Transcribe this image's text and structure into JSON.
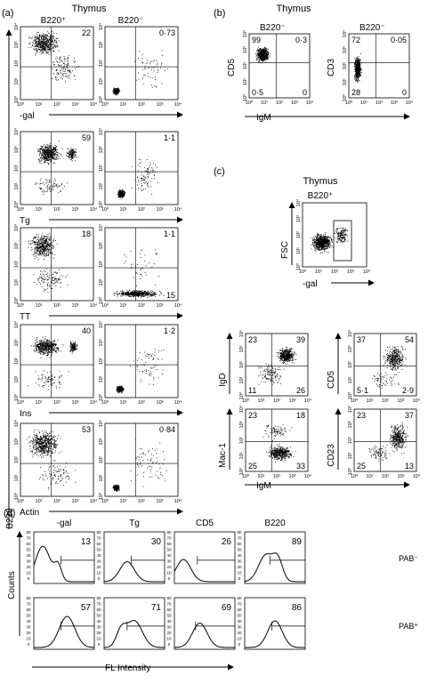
{
  "panel_a": {
    "panel_label": "(a)",
    "title": "Thymus",
    "column_headers": [
      "B220⁺",
      "B220⁻"
    ],
    "y_axis_label": "B220",
    "rows": [
      {
        "x_label": "-gal",
        "pos_value": "22",
        "neg_value": "0·73"
      },
      {
        "x_label": "Tg",
        "pos_value": "59",
        "neg_value": "1·1"
      },
      {
        "x_label": "TT",
        "pos_value": "18",
        "neg_value": "1·1",
        "neg_value_lower_right": "15"
      },
      {
        "x_label": "Ins",
        "pos_value": "40",
        "neg_value": "1·2"
      },
      {
        "x_label": "Actin",
        "pos_value": "53",
        "neg_value": "0·84"
      }
    ]
  },
  "panel_b": {
    "panel_label": "(b)",
    "title": "Thymus",
    "x_axis_label": "IgM",
    "plots": [
      {
        "header": "B220⁻",
        "y_label": "CD5",
        "ul": "99",
        "ur": "0·3",
        "ll": "0·5",
        "lr": "0"
      },
      {
        "header": "B220⁻",
        "y_label": "CD3",
        "ul": "72",
        "ur": "0·05",
        "ll": "28",
        "lr": "0"
      }
    ]
  },
  "panel_c": {
    "panel_label": "(c)",
    "title": "Thymus",
    "subtitle": "B220⁺",
    "gate_plot": {
      "y_label": "FSC",
      "x_label": "-gal"
    },
    "x_axis_label": "IgM",
    "plots": [
      {
        "y_label": "IgD",
        "ul": "23",
        "ur": "39",
        "ll": "11",
        "lr": "26"
      },
      {
        "y_label": "CD5",
        "ul": "37",
        "ur": "54",
        "ll": "5·1",
        "lr": "2·9"
      },
      {
        "y_label": "Mac-1",
        "ul": "23",
        "ur": "18",
        "ll": "25",
        "lr": "33"
      },
      {
        "y_label": "CD23",
        "ul": "23",
        "ur": "37",
        "ll": "25",
        "lr": "13"
      }
    ]
  },
  "panel_d": {
    "panel_label": "(d)",
    "y_axis_label": "Counts",
    "x_axis_label": "FL Intensity",
    "column_headers": [
      "-gal",
      "Tg",
      "CD5",
      "B220"
    ],
    "row_labels": [
      "PAB⁻",
      "PAB⁺"
    ],
    "values": [
      [
        "13",
        "30",
        "26",
        "89"
      ],
      [
        "57",
        "71",
        "69",
        "86"
      ]
    ],
    "y_tick_labels": [
      "0",
      "10",
      "20",
      "30",
      "40",
      "50",
      "60",
      "70",
      "80"
    ]
  },
  "axis_tick_labels": [
    "10⁰",
    "10¹",
    "10²",
    "10³",
    "10⁴"
  ]
}
